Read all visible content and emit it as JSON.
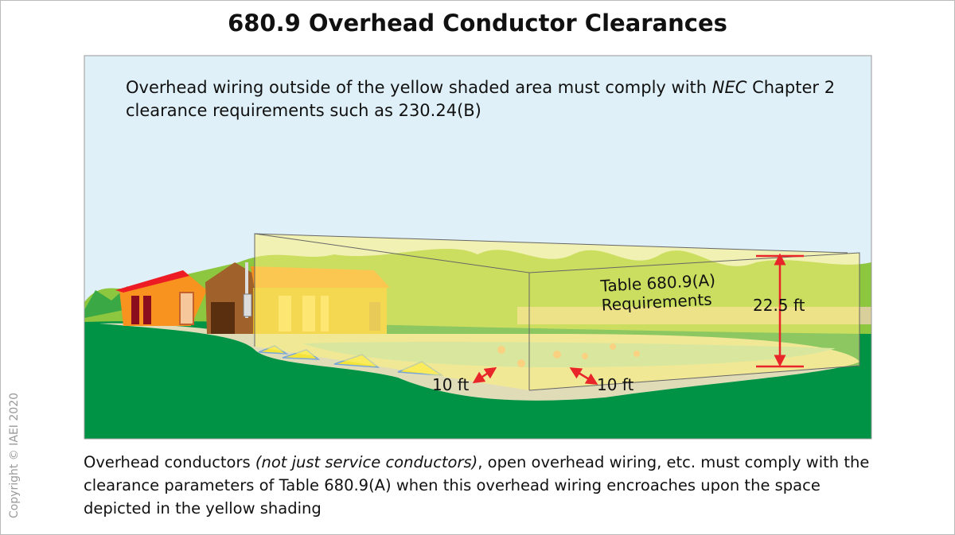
{
  "title": "680.9 Overhead Conductor Clearances",
  "top_note": {
    "text_before": "Overhead wiring outside of the yellow shaded area must comply with ",
    "italic": "NEC",
    "text_after": " Chapter 2 clearance requirements such as 230.24(B)"
  },
  "labels": {
    "table_line1": "Table 680.9(A)",
    "table_line2": "Requirements",
    "height": "22.5 ft",
    "horiz_left": "10 ft",
    "horiz_right": "10 ft"
  },
  "caption": {
    "before": "Overhead conductors ",
    "italic": "(not just service conductors)",
    "after": ", open overhead wiring, etc. must comply with the clearance parameters of Table 680.9(A) when this overhead wiring encroaches upon the space depicted in the yellow shading"
  },
  "copyright": "Copyright © IAEI 2020",
  "colors": {
    "sky": "#dff0f8",
    "grass": "#009245",
    "clearance_zone": "#fff27a",
    "arrow": "#e8262a"
  }
}
